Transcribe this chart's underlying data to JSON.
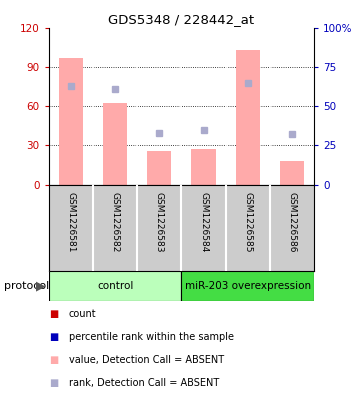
{
  "title": "GDS5348 / 228442_at",
  "samples": [
    "GSM1226581",
    "GSM1226582",
    "GSM1226583",
    "GSM1226584",
    "GSM1226585",
    "GSM1226586"
  ],
  "bar_values": [
    97,
    62,
    26,
    27,
    103,
    18
  ],
  "rank_values": [
    63,
    61,
    33,
    35,
    65,
    32
  ],
  "bar_color": "#ffaaaa",
  "rank_color": "#aaaacc",
  "left_ylim": [
    0,
    120
  ],
  "right_ylim": [
    0,
    100
  ],
  "left_yticks": [
    0,
    30,
    60,
    90,
    120
  ],
  "right_yticks": [
    0,
    25,
    50,
    75,
    100
  ],
  "right_yticklabels": [
    "0",
    "25",
    "50",
    "75",
    "100%"
  ],
  "left_color": "#cc0000",
  "right_color": "#0000bb",
  "groups": [
    {
      "label": "control",
      "start": 0,
      "end": 3,
      "color": "#bbffbb"
    },
    {
      "label": "miR-203 overexpression",
      "start": 3,
      "end": 6,
      "color": "#44dd44"
    }
  ],
  "protocol_label": "protocol",
  "legend_items": [
    {
      "color": "#cc0000",
      "label": "count"
    },
    {
      "color": "#0000bb",
      "label": "percentile rank within the sample"
    },
    {
      "color": "#ffaaaa",
      "label": "value, Detection Call = ABSENT"
    },
    {
      "color": "#aaaacc",
      "label": "rank, Detection Call = ABSENT"
    }
  ],
  "bg_color": "#ffffff",
  "sample_area_color": "#cccccc",
  "sample_border_color": "#888888",
  "bar_width": 0.55
}
